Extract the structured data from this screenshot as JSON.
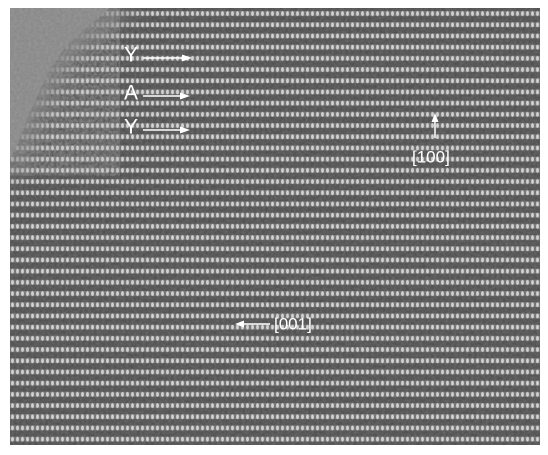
{
  "layer_labels": [
    "Y",
    "A",
    "Y"
  ],
  "directions": [
    "[100]",
    "[001]"
  ]
}
